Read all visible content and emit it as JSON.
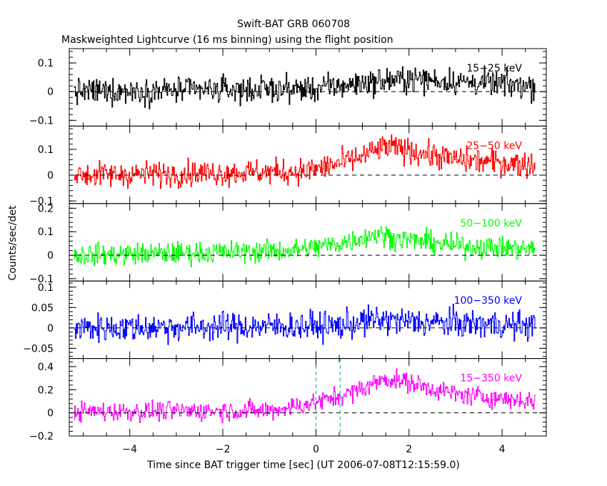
{
  "chart_data": {
    "type": "line",
    "title": "Swift-BAT GRB 060708",
    "subtitle": "Maskweighted Lightcurve (16 ms binning) using the flight position",
    "xlabel": "Time since BAT trigger time [sec] (UT 2006-07-08T12:15:59.0)",
    "ylabel": "Counts/sec/det",
    "xlim": [
      -5.3,
      4.95
    ],
    "x_ticks": [
      -4,
      -2,
      0,
      2,
      4
    ],
    "x_tick_labels": [
      "−4",
      "−2",
      "0",
      "2",
      "4"
    ],
    "vertical_markers": [
      0,
      0.52
    ],
    "panels": [
      {
        "name": "15-25 keV",
        "label": "15−25 keV",
        "color": "#000000",
        "ylim": [
          -0.12,
          0.15
        ],
        "yticks": [
          -0.1,
          0,
          0.1
        ],
        "ytick_labels": [
          "−0.1",
          "0",
          "0.1"
        ],
        "noise": 0.032,
        "profile": [
          [
            -5.2,
            0.0
          ],
          [
            0.0,
            0.01
          ],
          [
            1.0,
            0.03
          ],
          [
            2.0,
            0.045
          ],
          [
            3.0,
            0.035
          ],
          [
            4.7,
            0.02
          ]
        ]
      },
      {
        "name": "25-50 keV",
        "label": "25−50 keV",
        "color": "#ff0000",
        "ylim": [
          -0.11,
          0.19
        ],
        "yticks": [
          -0.1,
          0,
          0.1
        ],
        "ytick_labels": [
          "−0.1",
          "0",
          "0.1"
        ],
        "noise": 0.035,
        "profile": [
          [
            -5.2,
            0.0
          ],
          [
            -0.2,
            0.015
          ],
          [
            0.8,
            0.06
          ],
          [
            1.5,
            0.11
          ],
          [
            2.0,
            0.095
          ],
          [
            3.0,
            0.06
          ],
          [
            4.7,
            0.04
          ]
        ]
      },
      {
        "name": "50-100 keV",
        "label": "50−100 keV",
        "color": "#00ff00",
        "ylim": [
          -0.11,
          0.22
        ],
        "yticks": [
          -0.1,
          0,
          0.1,
          0.2
        ],
        "ytick_labels": [
          "−0.1",
          "0",
          "0.1",
          "0.2"
        ],
        "noise": 0.033,
        "profile": [
          [
            -5.2,
            0.0
          ],
          [
            -0.5,
            0.02
          ],
          [
            0.5,
            0.05
          ],
          [
            1.3,
            0.09
          ],
          [
            1.8,
            0.07
          ],
          [
            3.0,
            0.04
          ],
          [
            4.7,
            0.025
          ]
        ]
      },
      {
        "name": "100-350 keV",
        "label": "100−350 keV",
        "color": "#0000ff",
        "ylim": [
          -0.075,
          0.115
        ],
        "yticks": [
          -0.05,
          0,
          0.05,
          0.1
        ],
        "ytick_labels": [
          "−0.05",
          "0",
          "0.05",
          "0.1"
        ],
        "noise": 0.025,
        "profile": [
          [
            -5.2,
            0.0
          ],
          [
            0.5,
            0.005
          ],
          [
            1.3,
            0.02
          ],
          [
            2.0,
            0.015
          ],
          [
            4.7,
            0.005
          ]
        ]
      },
      {
        "name": "15-350 keV",
        "label": "15−350 keV",
        "color": "#ff00ff",
        "ylim": [
          -0.2,
          0.47
        ],
        "yticks": [
          -0.2,
          0,
          0.2,
          0.4
        ],
        "ytick_labels": [
          "−0.2",
          "0",
          "0.2",
          "0.4"
        ],
        "noise": 0.06,
        "profile": [
          [
            -5.2,
            0.01
          ],
          [
            -1.0,
            0.02
          ],
          [
            0.0,
            0.09
          ],
          [
            0.8,
            0.18
          ],
          [
            1.5,
            0.3
          ],
          [
            2.0,
            0.26
          ],
          [
            3.0,
            0.16
          ],
          [
            4.7,
            0.1
          ]
        ]
      }
    ]
  }
}
